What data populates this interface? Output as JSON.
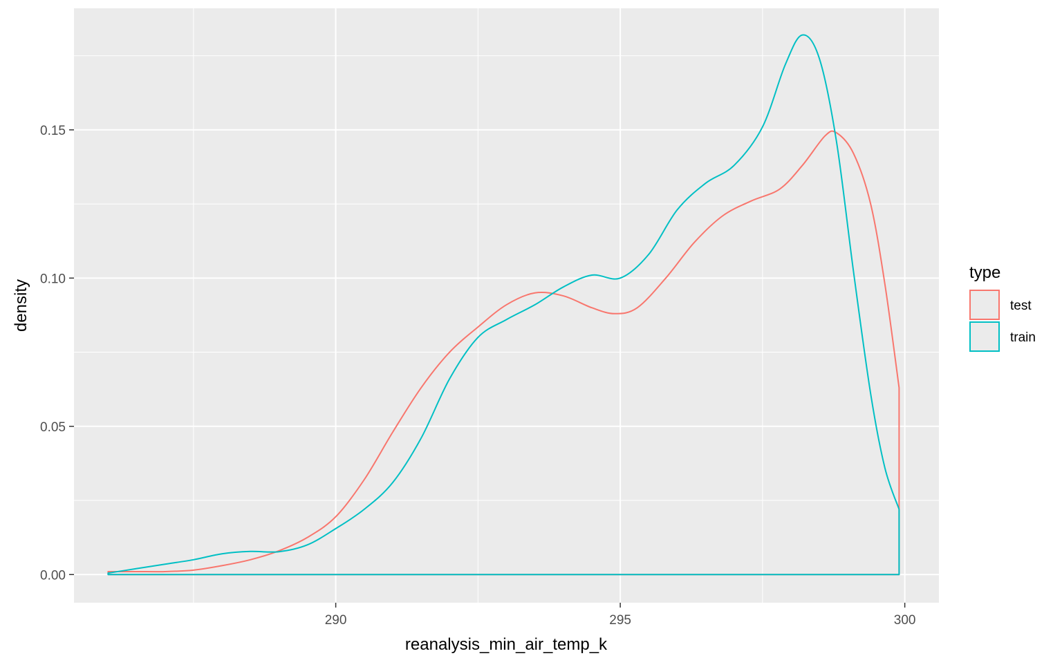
{
  "chart_data": {
    "type": "line",
    "title": "",
    "xlabel": "reanalysis_min_air_temp_k",
    "ylabel": "density",
    "xlim": [
      285.4,
      300.6
    ],
    "ylim": [
      -0.0095,
      0.191
    ],
    "x_ticks": [
      290,
      295,
      300
    ],
    "x_tick_labels": [
      "290",
      "295",
      "300"
    ],
    "x_minor_ticks": [
      287.5,
      292.5,
      297.5
    ],
    "y_ticks": [
      0.0,
      0.05,
      0.1,
      0.15
    ],
    "y_tick_labels": [
      "0.00",
      "0.05",
      "0.10",
      "0.15"
    ],
    "y_minor_ticks": [
      0.025,
      0.075,
      0.125,
      0.175
    ],
    "grid": true,
    "legend": {
      "title": "type",
      "position": "right"
    },
    "series": [
      {
        "name": "test",
        "color": "#F8766D",
        "x_min": 286.0,
        "x_max": 299.9,
        "points": [
          [
            286.0,
            0.001
          ],
          [
            286.5,
            0.001
          ],
          [
            287.0,
            0.001
          ],
          [
            287.5,
            0.0015
          ],
          [
            288.0,
            0.003
          ],
          [
            288.5,
            0.005
          ],
          [
            289.0,
            0.008
          ],
          [
            289.5,
            0.0125
          ],
          [
            290.0,
            0.0195
          ],
          [
            290.5,
            0.032
          ],
          [
            291.0,
            0.048
          ],
          [
            291.5,
            0.063
          ],
          [
            292.0,
            0.075
          ],
          [
            292.5,
            0.0835
          ],
          [
            293.0,
            0.091
          ],
          [
            293.5,
            0.095
          ],
          [
            294.0,
            0.094
          ],
          [
            294.5,
            0.09
          ],
          [
            294.9,
            0.088
          ],
          [
            295.3,
            0.09
          ],
          [
            295.8,
            0.1
          ],
          [
            296.3,
            0.112
          ],
          [
            296.8,
            0.121
          ],
          [
            297.3,
            0.126
          ],
          [
            297.8,
            0.13
          ],
          [
            298.2,
            0.138
          ],
          [
            298.6,
            0.148
          ],
          [
            298.8,
            0.149
          ],
          [
            299.1,
            0.142
          ],
          [
            299.4,
            0.125
          ],
          [
            299.65,
            0.098
          ],
          [
            299.9,
            0.063
          ]
        ]
      },
      {
        "name": "train",
        "color": "#00BFC4",
        "x_min": 286.0,
        "x_max": 299.9,
        "points": [
          [
            286.0,
            0.0005
          ],
          [
            286.5,
            0.002
          ],
          [
            287.0,
            0.0035
          ],
          [
            287.5,
            0.005
          ],
          [
            288.0,
            0.007
          ],
          [
            288.5,
            0.0078
          ],
          [
            289.0,
            0.0077
          ],
          [
            289.5,
            0.01
          ],
          [
            290.0,
            0.0155
          ],
          [
            290.5,
            0.022
          ],
          [
            291.0,
            0.031
          ],
          [
            291.5,
            0.046
          ],
          [
            292.0,
            0.066
          ],
          [
            292.5,
            0.08
          ],
          [
            293.0,
            0.086
          ],
          [
            293.5,
            0.091
          ],
          [
            294.0,
            0.097
          ],
          [
            294.5,
            0.101
          ],
          [
            295.0,
            0.1
          ],
          [
            295.5,
            0.108
          ],
          [
            296.0,
            0.123
          ],
          [
            296.5,
            0.132
          ],
          [
            297.0,
            0.138
          ],
          [
            297.5,
            0.151
          ],
          [
            297.9,
            0.172
          ],
          [
            298.2,
            0.182
          ],
          [
            298.5,
            0.174
          ],
          [
            298.8,
            0.146
          ],
          [
            299.1,
            0.102
          ],
          [
            299.4,
            0.061
          ],
          [
            299.65,
            0.036
          ],
          [
            299.9,
            0.022
          ]
        ]
      }
    ]
  }
}
